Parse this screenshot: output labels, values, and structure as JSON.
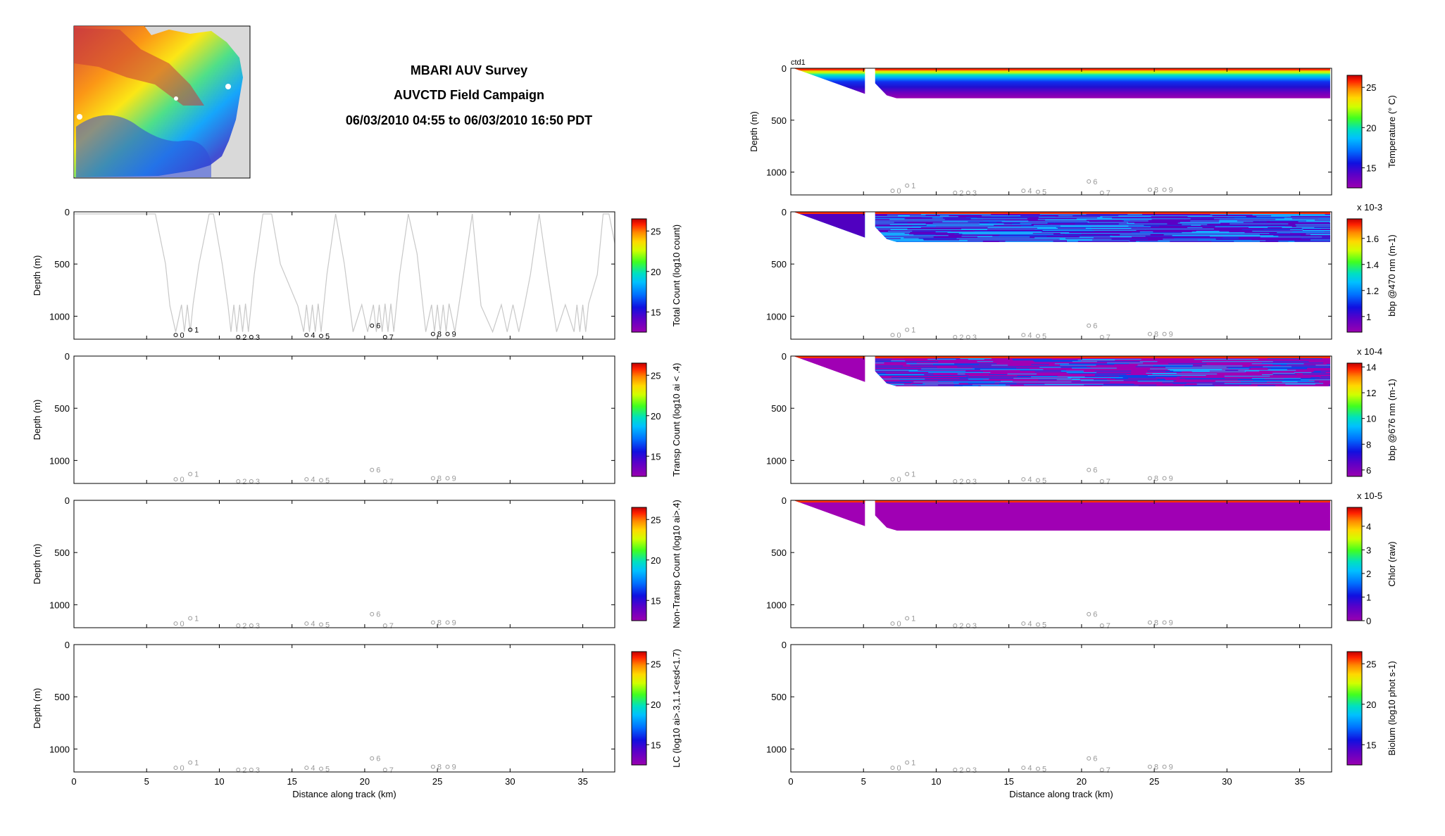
{
  "titles": {
    "line1": "MBARI AUV Survey",
    "line2": "AUVCTD Field Campaign",
    "line3": "06/03/2010 04:55 to 06/03/2010 16:50 PDT"
  },
  "colors": {
    "track": "#c8c8c8",
    "waypoint_dark": "#000000",
    "waypoint_gray": "#999999",
    "map_land": "#d9d9d9",
    "colorbar": [
      "#9a00b0",
      "#6a00c0",
      "#1010e0",
      "#0060ff",
      "#00b8ff",
      "#00e0c0",
      "#30ff30",
      "#c8ff00",
      "#ffe000",
      "#ff9000",
      "#ff2000",
      "#c00000"
    ]
  },
  "chart_data": [
    {
      "id": "total-count",
      "type": "line",
      "xlabel": "",
      "ylabel": "Depth (m)",
      "colorbar_label": "Total Count (log10 count)",
      "colorbar_ticks": [
        "15",
        "20",
        "25"
      ],
      "colorbar_range": [
        12.5,
        26.5
      ],
      "xlim": [
        0,
        37.2
      ],
      "ylim": [
        1220,
        0
      ],
      "yticks": [
        0,
        500,
        1000
      ],
      "xticks": [],
      "track_x": [
        0,
        2,
        4,
        5.6,
        6.3,
        6.6,
        7.0,
        7.4,
        7.6,
        7.8,
        8.0,
        8.2,
        8.6,
        9.3,
        9.6,
        10.2,
        10.6,
        10.8,
        11.0,
        11.2,
        11.4,
        11.6,
        11.8,
        12.0,
        12.2,
        12.4,
        13.0,
        13.6,
        14.2,
        15.4,
        15.8,
        16.0,
        16.2,
        16.4,
        16.6,
        16.8,
        17.0,
        17.4,
        18.0,
        18.6,
        19.2,
        19.8,
        20.2,
        20.6,
        20.8,
        21.0,
        21.2,
        21.4,
        21.6,
        21.8,
        22.0,
        22.4,
        23.0,
        23.6,
        24.2,
        24.6,
        24.8,
        25.0,
        25.2,
        25.4,
        25.6,
        25.8,
        26.2,
        26.8,
        27.4,
        28.0,
        28.8,
        29.4,
        29.8,
        30.2,
        30.6,
        31.0,
        31.4,
        32.0,
        32.6,
        33.2,
        33.8,
        34.4,
        34.6,
        34.8,
        35.0,
        35.2,
        35.4,
        36.0,
        36.4,
        36.8,
        37.2
      ],
      "track_y": [
        20,
        20,
        20,
        20,
        500,
        900,
        1150,
        890,
        1150,
        890,
        1150,
        880,
        500,
        20,
        20,
        500,
        900,
        1150,
        890,
        1150,
        890,
        1150,
        880,
        1150,
        880,
        600,
        20,
        20,
        500,
        900,
        1150,
        890,
        1150,
        890,
        1150,
        880,
        1150,
        600,
        20,
        500,
        1150,
        890,
        1150,
        890,
        1150,
        890,
        1150,
        880,
        1150,
        880,
        1150,
        600,
        20,
        400,
        1150,
        890,
        1150,
        890,
        1150,
        890,
        1150,
        880,
        1150,
        600,
        20,
        900,
        1150,
        890,
        1150,
        890,
        1150,
        890,
        600,
        20,
        600,
        1150,
        890,
        1150,
        890,
        1150,
        890,
        1150,
        880,
        600,
        20,
        20,
        300
      ],
      "waypoint_labels": [
        "0",
        "1",
        "2",
        "3",
        "4",
        "5",
        "6",
        "7",
        "8",
        "9"
      ],
      "waypoints_x": [
        7.0,
        8.0,
        11.3,
        12.2,
        16.0,
        17.0,
        20.5,
        21.4,
        24.7,
        25.7
      ],
      "waypoints_y": [
        1180,
        1130,
        1200,
        1200,
        1180,
        1190,
        1090,
        1200,
        1170,
        1170
      ]
    },
    {
      "id": "transp-count",
      "type": "line",
      "xlabel": "",
      "ylabel": "Depth (m)",
      "colorbar_label": "Transp Count (log10 ai < .4)",
      "colorbar_ticks": [
        "15",
        "20",
        "25"
      ],
      "colorbar_range": [
        12.5,
        26.5
      ],
      "xlim": [
        0,
        37.2
      ],
      "ylim": [
        1220,
        0
      ],
      "yticks": [
        0,
        500,
        1000
      ],
      "xticks": []
    },
    {
      "id": "non-transp-count",
      "type": "line",
      "xlabel": "",
      "ylabel": "Depth (m)",
      "colorbar_label": "Non-Transp Count (log10 ai>.4)",
      "colorbar_ticks": [
        "15",
        "20",
        "25"
      ],
      "colorbar_range": [
        12.5,
        26.5
      ],
      "xlim": [
        0,
        37.2
      ],
      "ylim": [
        1220,
        0
      ],
      "yticks": [
        0,
        500,
        1000
      ],
      "xticks": []
    },
    {
      "id": "lc",
      "type": "line",
      "xlabel": "Distance along track (km)",
      "ylabel": "Depth (m)",
      "colorbar_label": "LC (log10 ai>.3,1.1<esd<1.7)",
      "colorbar_ticks": [
        "15",
        "20",
        "25"
      ],
      "colorbar_range": [
        12.5,
        26.5
      ],
      "xlim": [
        0,
        37.2
      ],
      "ylim": [
        1220,
        0
      ],
      "yticks": [
        0,
        500,
        1000
      ],
      "xticks": [
        0,
        5,
        10,
        15,
        20,
        25,
        30,
        35
      ]
    },
    {
      "id": "temperature",
      "type": "heatmap",
      "title": "ctd1",
      "xlabel": "",
      "ylabel": "Depth (m)",
      "colorbar_label": "Temperature (° C)",
      "colorbar_ticks": [
        "15",
        "20",
        "25"
      ],
      "colorbar_range": [
        12.5,
        26.5
      ],
      "colorbar_exponent": "",
      "xlim": [
        0,
        37.2
      ],
      "ylim": [
        1220,
        0
      ],
      "yticks": [
        0,
        500,
        1000
      ],
      "xticks": [],
      "gap_x": [
        5.1,
        5.8
      ],
      "profile_depth": 290
    },
    {
      "id": "bbp470",
      "type": "heatmap",
      "xlabel": "",
      "ylabel": "",
      "colorbar_label": "bbp @470 nm (m-1)",
      "colorbar_ticks": [
        "1",
        "1.2",
        "1.4",
        "1.6"
      ],
      "colorbar_range": [
        0.88,
        1.75
      ],
      "colorbar_exponent": "x 10-3",
      "xlim": [
        0,
        37.2
      ],
      "ylim": [
        1220,
        0
      ],
      "yticks": [
        0,
        500,
        1000
      ],
      "xticks": [],
      "gap_x": [
        5.1,
        5.8
      ],
      "profile_depth": 290
    },
    {
      "id": "bbp676",
      "type": "heatmap",
      "xlabel": "",
      "ylabel": "",
      "colorbar_label": "bbp @676 nm (m-1)",
      "colorbar_ticks": [
        "6",
        "8",
        "10",
        "12",
        "14"
      ],
      "colorbar_range": [
        5.5,
        14.3
      ],
      "colorbar_exponent": "x 10-4",
      "xlim": [
        0,
        37.2
      ],
      "ylim": [
        1220,
        0
      ],
      "yticks": [
        0,
        500,
        1000
      ],
      "xticks": [],
      "gap_x": [
        5.1,
        5.8
      ],
      "profile_depth": 290
    },
    {
      "id": "chlor",
      "type": "heatmap",
      "xlabel": "",
      "ylabel": "",
      "colorbar_label": "Chlor (raw)",
      "colorbar_ticks": [
        "0",
        "1",
        "2",
        "3",
        "4"
      ],
      "colorbar_range": [
        0,
        4.8
      ],
      "colorbar_exponent": "x 10-5",
      "xlim": [
        0,
        37.2
      ],
      "ylim": [
        1220,
        0
      ],
      "yticks": [
        0,
        500,
        1000
      ],
      "xticks": [],
      "gap_x": [
        5.1,
        5.8
      ],
      "profile_depth": 290
    },
    {
      "id": "biolum",
      "type": "heatmap",
      "xlabel": "Distance along track (km)",
      "ylabel": "",
      "colorbar_label": "Biolum (log10 phot s-1)",
      "colorbar_ticks": [
        "15",
        "20",
        "25"
      ],
      "colorbar_range": [
        12.5,
        26.5
      ],
      "colorbar_exponent": "",
      "xlim": [
        0,
        37.2
      ],
      "ylim": [
        1220,
        0
      ],
      "yticks": [
        0,
        500,
        1000
      ],
      "xticks": [
        0,
        5,
        10,
        15,
        20,
        25,
        30,
        35
      ]
    }
  ]
}
